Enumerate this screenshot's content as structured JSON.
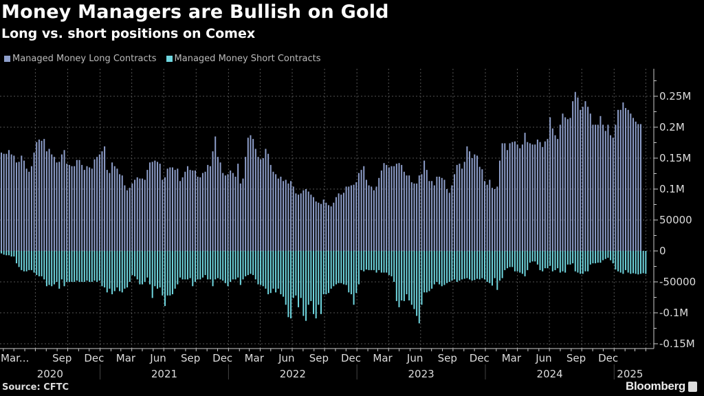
{
  "chart_data": {
    "type": "bar",
    "title": "Money Managers are Bullish on Gold",
    "subtitle": "Long vs. short positions on Comex",
    "source": "Source: CFTC",
    "brand": "Bloomberg",
    "x_frequency": "weekly",
    "x_range": [
      "2020-03",
      "2025-02"
    ],
    "ylim": [
      -160000,
      290000
    ],
    "grid": true,
    "legend_position": "top-left",
    "y_ticks": [
      {
        "value": 250000,
        "label": "0.25M"
      },
      {
        "value": 200000,
        "label": "0.2M"
      },
      {
        "value": 150000,
        "label": "0.15M"
      },
      {
        "value": 100000,
        "label": "0.1M"
      },
      {
        "value": 50000,
        "label": "50000"
      },
      {
        "value": 0,
        "label": "0"
      },
      {
        "value": -50000,
        "label": "-50000"
      },
      {
        "value": -100000,
        "label": "-0.1M"
      },
      {
        "value": -150000,
        "label": "-0.15M"
      }
    ],
    "x_month_ticks": [
      {
        "date": "2020-03-15",
        "label": "Mar..."
      },
      {
        "date": "2020-09-15",
        "label": "Sep"
      },
      {
        "date": "2020-12-15",
        "label": "Dec"
      },
      {
        "date": "2021-03-15",
        "label": "Mar"
      },
      {
        "date": "2021-06-15",
        "label": "Jun"
      },
      {
        "date": "2021-09-15",
        "label": "Sep"
      },
      {
        "date": "2021-12-15",
        "label": "Dec"
      },
      {
        "date": "2022-03-15",
        "label": "Mar"
      },
      {
        "date": "2022-06-15",
        "label": "Jun"
      },
      {
        "date": "2022-09-15",
        "label": "Sep"
      },
      {
        "date": "2022-12-15",
        "label": "Dec"
      },
      {
        "date": "2023-03-15",
        "label": "Mar"
      },
      {
        "date": "2023-06-15",
        "label": "Jun"
      },
      {
        "date": "2023-09-15",
        "label": "Sep"
      },
      {
        "date": "2023-12-15",
        "label": "Dec"
      },
      {
        "date": "2024-03-15",
        "label": "Mar"
      },
      {
        "date": "2024-06-15",
        "label": "Jun"
      },
      {
        "date": "2024-09-15",
        "label": "Sep"
      },
      {
        "date": "2024-12-15",
        "label": "Dec"
      }
    ],
    "x_year_labels": [
      "2020",
      "2021",
      "2022",
      "2023",
      "2024",
      "2025"
    ],
    "colors": {
      "long": "#8e9fcb",
      "short": "#6fd6df"
    },
    "series": [
      {
        "name": "Managed Money Long Contracts",
        "values": [
          159000,
          157000,
          157000,
          163000,
          156000,
          154000,
          143000,
          144000,
          154000,
          146000,
          133000,
          128000,
          137000,
          159000,
          176000,
          180000,
          178000,
          181000,
          161000,
          165000,
          156000,
          152000,
          143000,
          144000,
          156000,
          163000,
          141000,
          139000,
          137000,
          137000,
          147000,
          147000,
          139000,
          131000,
          137000,
          135000,
          133000,
          148000,
          152000,
          156000,
          161000,
          169000,
          131000,
          126000,
          143000,
          137000,
          133000,
          124000,
          122000,
          106000,
          98000,
          102000,
          109000,
          115000,
          119000,
          117000,
          117000,
          115000,
          131000,
          143000,
          144000,
          146000,
          144000,
          141000,
          115000,
          119000,
          133000,
          135000,
          135000,
          131000,
          133000,
          113000,
          119000,
          128000,
          137000,
          131000,
          130000,
          130000,
          120000,
          119000,
          126000,
          128000,
          139000,
          137000,
          161000,
          185000,
          152000,
          143000,
          126000,
          122000,
          124000,
          130000,
          126000,
          120000,
          141000,
          109000,
          117000,
          152000,
          183000,
          187000,
          181000,
          165000,
          152000,
          148000,
          150000,
          165000,
          157000,
          139000,
          128000,
          124000,
          117000,
          120000,
          113000,
          115000,
          109000,
          113000,
          104000,
          93000,
          91000,
          93000,
          98000,
          100000,
          96000,
          91000,
          87000,
          80000,
          78000,
          76000,
          83000,
          78000,
          74000,
          72000,
          78000,
          87000,
          93000,
          91000,
          94000,
          104000,
          104000,
          106000,
          107000,
          111000,
          126000,
          131000,
          137000,
          115000,
          106000,
          104000,
          98000,
          104000,
          118000,
          130000,
          142000,
          139000,
          135000,
          137000,
          137000,
          141000,
          142000,
          139000,
          128000,
          122000,
          122000,
          111000,
          109000,
          109000,
          122000,
          124000,
          146000,
          131000,
          113000,
          113000,
          106000,
          120000,
          120000,
          118000,
          115000,
          100000,
          94000,
          106000,
          124000,
          139000,
          141000,
          133000,
          144000,
          169000,
          161000,
          150000,
          156000,
          154000,
          136000,
          132000,
          113000,
          107000,
          115000,
          102000,
          100000,
          104000,
          146000,
          174000,
          174000,
          163000,
          174000,
          176000,
          177000,
          172000,
          166000,
          172000,
          191000,
          176000,
          174000,
          172000,
          172000,
          180000,
          176000,
          168000,
          177000,
          181000,
          216000,
          198000,
          187000,
          181000,
          204000,
          222000,
          216000,
          213000,
          215000,
          242000,
          257000,
          248000,
          228000,
          233000,
          242000,
          233000,
          222000,
          204000,
          204000,
          204000,
          218000,
          204000,
          194000,
          204000,
          187000,
          183000,
          204000,
          228000,
          228000,
          240000,
          231000,
          228000,
          222000,
          215000,
          209000,
          205000,
          205000
        ]
      },
      {
        "name": "Managed Money Short Contracts",
        "values": [
          -4000,
          -6000,
          -7000,
          -7000,
          -9000,
          -9000,
          -20000,
          -26000,
          -31000,
          -33000,
          -33000,
          -31000,
          -31000,
          -35000,
          -39000,
          -41000,
          -41000,
          -46000,
          -57000,
          -55000,
          -57000,
          -54000,
          -50000,
          -61000,
          -46000,
          -57000,
          -50000,
          -50000,
          -50000,
          -50000,
          -48000,
          -50000,
          -50000,
          -50000,
          -48000,
          -50000,
          -50000,
          -48000,
          -50000,
          -48000,
          -57000,
          -59000,
          -67000,
          -61000,
          -70000,
          -65000,
          -59000,
          -65000,
          -67000,
          -61000,
          -59000,
          -50000,
          -39000,
          -41000,
          -46000,
          -54000,
          -54000,
          -50000,
          -43000,
          -54000,
          -76000,
          -57000,
          -61000,
          -59000,
          -72000,
          -89000,
          -72000,
          -72000,
          -70000,
          -61000,
          -54000,
          -43000,
          -46000,
          -46000,
          -46000,
          -44000,
          -57000,
          -50000,
          -46000,
          -46000,
          -43000,
          -39000,
          -46000,
          -46000,
          -57000,
          -46000,
          -44000,
          -46000,
          -48000,
          -52000,
          -57000,
          -50000,
          -46000,
          -46000,
          -43000,
          -55000,
          -46000,
          -41000,
          -39000,
          -37000,
          -39000,
          -46000,
          -54000,
          -55000,
          -57000,
          -61000,
          -70000,
          -68000,
          -61000,
          -67000,
          -61000,
          -70000,
          -74000,
          -87000,
          -107000,
          -109000,
          -76000,
          -72000,
          -91000,
          -76000,
          -105000,
          -113000,
          -87000,
          -81000,
          -102000,
          -109000,
          -87000,
          -102000,
          -70000,
          -70000,
          -68000,
          -61000,
          -57000,
          -54000,
          -52000,
          -52000,
          -54000,
          -55000,
          -67000,
          -70000,
          -87000,
          -68000,
          -54000,
          -31000,
          -33000,
          -30000,
          -31000,
          -31000,
          -31000,
          -35000,
          -31000,
          -35000,
          -35000,
          -35000,
          -39000,
          -41000,
          -50000,
          -81000,
          -91000,
          -80000,
          -81000,
          -70000,
          -80000,
          -87000,
          -94000,
          -105000,
          -117000,
          -87000,
          -67000,
          -67000,
          -65000,
          -61000,
          -54000,
          -50000,
          -54000,
          -57000,
          -55000,
          -52000,
          -50000,
          -48000,
          -46000,
          -50000,
          -48000,
          -46000,
          -45000,
          -44000,
          -46000,
          -48000,
          -47000,
          -45000,
          -46000,
          -44000,
          -46000,
          -50000,
          -52000,
          -56000,
          -44000,
          -63000,
          -48000,
          -44000,
          -31000,
          -28000,
          -26000,
          -26000,
          -33000,
          -33000,
          -35000,
          -37000,
          -41000,
          -31000,
          -19000,
          -17000,
          -17000,
          -22000,
          -31000,
          -33000,
          -28000,
          -28000,
          -24000,
          -33000,
          -31000,
          -28000,
          -35000,
          -33000,
          -35000,
          -22000,
          -22000,
          -20000,
          -33000,
          -35000,
          -37000,
          -37000,
          -33000,
          -33000,
          -22000,
          -20000,
          -20000,
          -19000,
          -19000,
          -15000,
          -13000,
          -11000,
          -15000,
          -20000,
          -30000,
          -33000,
          -35000,
          -37000,
          -31000,
          -35000,
          -37000,
          -36000,
          -37000,
          -38000,
          -37000,
          -36000,
          -37000
        ]
      }
    ]
  }
}
